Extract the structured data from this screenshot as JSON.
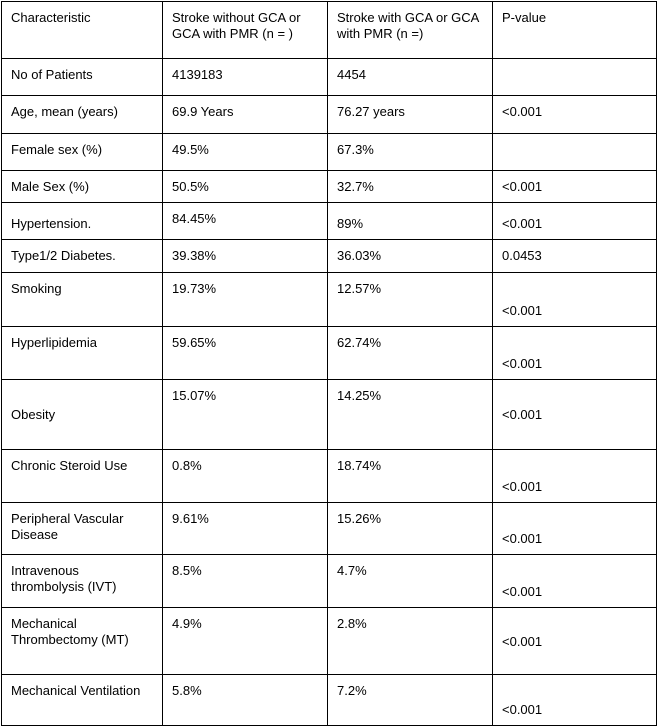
{
  "table": {
    "columns": [
      "Characteristic",
      "Stroke without GCA or GCA with PMR (n = )",
      "Stroke with GCA or GCA with PMR (n =)",
      "P-value"
    ],
    "rows": [
      {
        "characteristic": "No of Patients",
        "without_gca": "4139183",
        "with_gca": "4454",
        "p_value": ""
      },
      {
        "characteristic": "Age, mean (years)",
        "without_gca": "69.9 Years",
        "with_gca": "76.27 years",
        "p_value": "<0.001"
      },
      {
        "characteristic": "Female sex (%)",
        "without_gca": "49.5%",
        "with_gca": "67.3%",
        "p_value": ""
      },
      {
        "characteristic": "Male Sex (%)",
        "without_gca": "50.5%",
        "with_gca": "32.7%",
        "p_value": "<0.001"
      },
      {
        "characteristic": "Hypertension.",
        "without_gca": "84.45%",
        "with_gca": "89%",
        "p_value": "<0.001"
      },
      {
        "characteristic": "Type1/2 Diabetes.",
        "without_gca": "39.38%",
        "with_gca": "36.03%",
        "p_value": "0.0453"
      },
      {
        "characteristic": "Smoking",
        "without_gca": "19.73%",
        "with_gca": "12.57%",
        "p_value": "<0.001"
      },
      {
        "characteristic": "Hyperlipidemia",
        "without_gca": "59.65%",
        "with_gca": "62.74%",
        "p_value": "<0.001"
      },
      {
        "characteristic": "Obesity",
        "without_gca": "15.07%",
        "with_gca": "14.25%",
        "p_value": "<0.001"
      },
      {
        "characteristic": "Chronic Steroid Use",
        "without_gca": "0.8%",
        "with_gca": "18.74%",
        "p_value": "<0.001"
      },
      {
        "characteristic": "Peripheral Vascular Disease",
        "without_gca": "9.61%",
        "with_gca": "15.26%",
        "p_value": "<0.001"
      },
      {
        "characteristic": "Intravenous thrombolysis (IVT)",
        "without_gca": "8.5%",
        "with_gca": "4.7%",
        "p_value": "<0.001"
      },
      {
        "characteristic": "Mechanical Thrombectomy (MT)",
        "without_gca": "4.9%",
        "with_gca": "2.8%",
        "p_value": "<0.001"
      },
      {
        "characteristic": "Mechanical Ventilation",
        "without_gca": "5.8%",
        "with_gca": "7.2%",
        "p_value": "<0.001"
      }
    ],
    "colors": {
      "border": "#000000",
      "text": "#000000",
      "background": "#ffffff"
    }
  }
}
